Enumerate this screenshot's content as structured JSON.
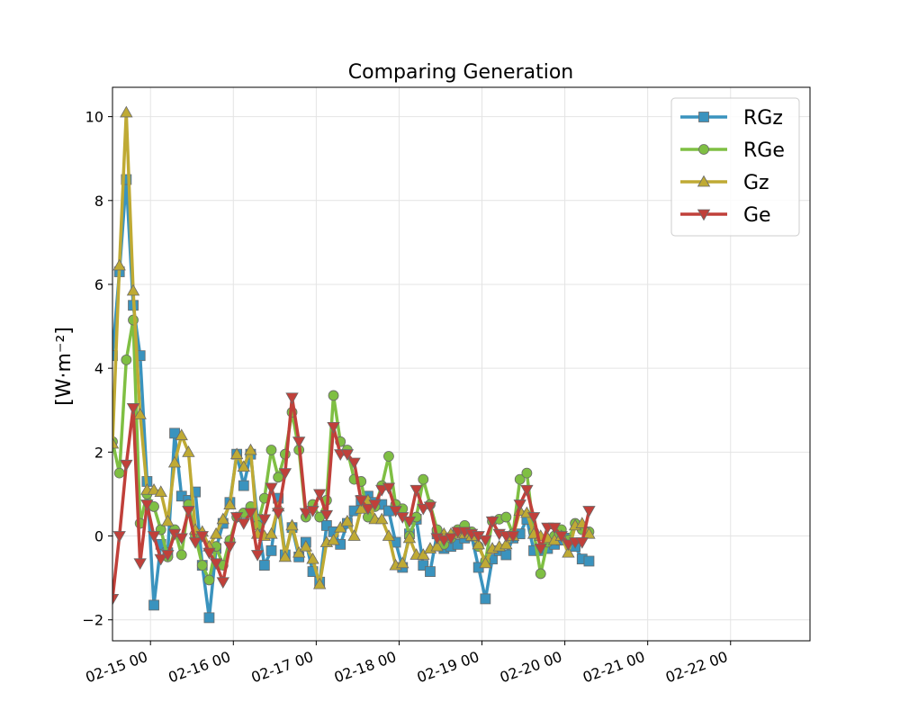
{
  "chart_data": {
    "type": "line",
    "title": "Comparing Generation",
    "xlabel": "",
    "ylabel": "[W·m⁻²]",
    "x_start": "02-14 13:00",
    "x_step_hours": 2,
    "xlim": [
      "02-14 13:00",
      "02-22 23:00"
    ],
    "ylim": [
      -2.5,
      10.7
    ],
    "yticks": [
      -2,
      0,
      2,
      4,
      6,
      8,
      10
    ],
    "ytick_labels": [
      "−2",
      "0",
      "2",
      "4",
      "6",
      "8",
      "10"
    ],
    "xticks": [
      "02-15 00:00",
      "02-16 00:00",
      "02-17 00:00",
      "02-18 00:00",
      "02-19 00:00",
      "02-20 00:00",
      "02-21 00:00",
      "02-22 00:00"
    ],
    "xtick_labels": [
      "02-15 00",
      "02-16 00",
      "02-17 00",
      "02-18 00",
      "02-19 00",
      "02-20 00",
      "02-21 00",
      "02-22 00"
    ],
    "grid": true,
    "legend_position": "top-right",
    "series": [
      {
        "name": "RGz",
        "color": "#3a93be",
        "marker": "square",
        "values": [
          4.3,
          6.3,
          8.5,
          5.5,
          4.3,
          1.3,
          -1.65,
          -0.2,
          -0.4,
          2.45,
          0.95,
          0.85,
          1.05,
          -0.7,
          -1.95,
          -0.3,
          0.3,
          0.8,
          1.95,
          1.2,
          1.95,
          0.4,
          -0.7,
          -0.35,
          0.9,
          -0.45,
          0.2,
          -0.5,
          -0.15,
          -0.85,
          -1.1,
          0.25,
          0.1,
          -0.2,
          0.3,
          0.6,
          0.85,
          0.95,
          0.8,
          0.75,
          0.6,
          -0.15,
          -0.75,
          0.05,
          0.4,
          -0.7,
          -0.85,
          0.05,
          -0.3,
          -0.25,
          -0.2,
          -0.05,
          0.0,
          -0.75,
          -1.5,
          -0.55,
          -0.35,
          -0.45,
          -0.05,
          0.05,
          0.4,
          -0.35,
          -0.35,
          -0.3,
          -0.2,
          -0.1,
          -0.05,
          -0.25,
          -0.55,
          -0.6
        ]
      },
      {
        "name": "RGe",
        "color": "#7fbf43",
        "marker": "circle",
        "values": [
          2.25,
          1.5,
          4.2,
          5.15,
          0.3,
          1.0,
          0.7,
          0.15,
          -0.5,
          0.15,
          -0.45,
          0.75,
          0.0,
          -0.7,
          -1.05,
          -0.25,
          -0.7,
          -0.1,
          0.45,
          0.55,
          0.7,
          0.25,
          0.9,
          2.05,
          1.4,
          1.95,
          2.95,
          2.05,
          0.45,
          0.75,
          0.45,
          0.85,
          3.35,
          2.25,
          2.05,
          1.35,
          1.3,
          0.45,
          0.7,
          1.2,
          1.9,
          0.75,
          0.65,
          0.0,
          0.45,
          1.35,
          0.75,
          0.15,
          -0.2,
          -0.05,
          0.15,
          0.25,
          0.1,
          -0.25,
          -0.6,
          0.35,
          0.4,
          0.45,
          0.05,
          1.35,
          1.5,
          0.1,
          -0.9,
          -0.15,
          0.0,
          0.15,
          -0.1,
          0.3,
          0.15,
          0.1
        ]
      },
      {
        "name": "Gz",
        "color": "#bfaa34",
        "marker": "triangle-up",
        "values": [
          2.2,
          6.45,
          10.1,
          5.85,
          2.9,
          1.1,
          1.1,
          1.05,
          0.35,
          1.75,
          2.4,
          2.0,
          0.15,
          0.1,
          -0.25,
          0.05,
          0.4,
          0.75,
          1.95,
          1.65,
          2.05,
          0.05,
          0.0,
          0.05,
          0.7,
          -0.5,
          0.25,
          -0.4,
          -0.25,
          -0.55,
          -1.15,
          -0.15,
          -0.1,
          0.2,
          0.35,
          0.0,
          0.65,
          0.85,
          0.4,
          0.4,
          0.0,
          -0.7,
          -0.65,
          -0.05,
          -0.45,
          -0.45,
          -0.3,
          -0.25,
          0.05,
          0.05,
          0.05,
          0.05,
          0.0,
          -0.2,
          -0.65,
          -0.3,
          -0.25,
          -0.2,
          0.0,
          0.6,
          0.55,
          0.05,
          0.0,
          -0.05,
          -0.1,
          0.0,
          -0.4,
          0.25,
          0.3,
          0.05
        ]
      },
      {
        "name": "Ge",
        "color": "#c0403a",
        "marker": "triangle-down",
        "values": [
          -1.5,
          0.0,
          1.7,
          3.05,
          -0.65,
          0.75,
          0.0,
          -0.55,
          -0.45,
          0.05,
          -0.05,
          0.6,
          -0.15,
          0.0,
          -0.4,
          -0.65,
          -1.1,
          -0.25,
          0.45,
          0.3,
          0.55,
          -0.45,
          0.4,
          1.15,
          0.55,
          1.5,
          3.3,
          2.25,
          0.55,
          0.6,
          1.0,
          0.5,
          2.6,
          1.95,
          1.95,
          1.75,
          0.85,
          0.65,
          0.75,
          1.1,
          1.15,
          0.6,
          0.45,
          0.35,
          1.1,
          0.65,
          0.7,
          -0.05,
          -0.1,
          -0.05,
          0.1,
          0.1,
          0.05,
          0.0,
          -0.1,
          0.35,
          0.05,
          0.0,
          0.0,
          0.75,
          1.1,
          0.45,
          -0.3,
          0.2,
          0.2,
          0.0,
          -0.2,
          -0.15,
          -0.15,
          0.6
        ]
      }
    ]
  }
}
